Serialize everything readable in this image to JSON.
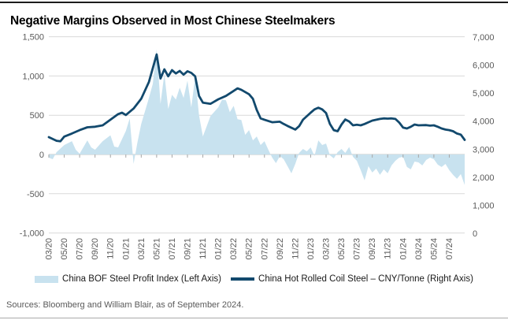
{
  "title": "Negative Margins Observed in Most Chinese Steelmakers",
  "source_note": "Sources: Bloomberg and William Blair, as of September 2024.",
  "legend": [
    {
      "label": "China BOF Steel Profit Index (Left Axis)",
      "swatch": "area",
      "color": "#c8e2ef"
    },
    {
      "label": "China Hot Rolled Coil Steel – CNY/Tonne (Right Axis)",
      "swatch": "line",
      "color": "#12496d"
    }
  ],
  "colors": {
    "area_fill": "#c8e2ef",
    "line": "#12496d",
    "grid": "#d9d9d9",
    "zero_axis": "#c4c4c4",
    "tick_mark": "#a6a6a6",
    "tick_text": "#595959"
  },
  "chart_data": {
    "type": "area",
    "subtype": "dual-axis area + line",
    "title": "Negative Margins Observed in Most Chinese Steelmakers",
    "x_tick_labels": [
      "03/20",
      "05/20",
      "07/20",
      "09/20",
      "11/20",
      "01/21",
      "03/21",
      "05/21",
      "07/21",
      "09/21",
      "11/21",
      "01/22",
      "03/22",
      "05/22",
      "07/22",
      "09/22",
      "11/22",
      "01/23",
      "03/23",
      "05/23",
      "07/23",
      "09/23",
      "11/23",
      "01/24",
      "03/24",
      "05/24",
      "07/24"
    ],
    "x_note": "x values below are month indices: 0 = 2020-03, 1 = 2020-04 ... 54 = 2024-09; fractional = mid-month",
    "left_axis": {
      "range": [
        -1000,
        1500
      ],
      "tick_values": [
        1500,
        1000,
        500,
        0,
        -500,
        -1000
      ],
      "tick_labels": [
        "1,500",
        "1,000",
        "500",
        "0",
        "-500",
        "-1,000"
      ]
    },
    "right_axis": {
      "range": [
        0,
        7000
      ],
      "tick_values": [
        7000,
        6000,
        5000,
        4000,
        3000,
        2000,
        1000,
        0
      ],
      "tick_labels": [
        "7,000",
        "6,000",
        "5,000",
        "4,000",
        "3,000",
        "2,000",
        "1,000",
        "0"
      ]
    },
    "grid": true,
    "legend_position": "bottom",
    "series": [
      {
        "name": "China BOF Steel Profit Index",
        "axis": "left",
        "type": "area",
        "color": "#c8e2ef",
        "points": [
          [
            0,
            -40
          ],
          [
            0.5,
            -60
          ],
          [
            1,
            30
          ],
          [
            2,
            120
          ],
          [
            3,
            170
          ],
          [
            3.5,
            60
          ],
          [
            4,
            10
          ],
          [
            5,
            180
          ],
          [
            5.5,
            90
          ],
          [
            6,
            60
          ],
          [
            7,
            170
          ],
          [
            8,
            245
          ],
          [
            8.5,
            100
          ],
          [
            9,
            90
          ],
          [
            10,
            300
          ],
          [
            10.5,
            460
          ],
          [
            11,
            -120
          ],
          [
            11.5,
            150
          ],
          [
            12,
            390
          ],
          [
            13,
            720
          ],
          [
            13.5,
            900
          ],
          [
            14,
            1340
          ],
          [
            14.5,
            645
          ],
          [
            15,
            1030
          ],
          [
            15.5,
            580
          ],
          [
            16,
            760
          ],
          [
            16.5,
            700
          ],
          [
            17,
            850
          ],
          [
            17.5,
            720
          ],
          [
            18,
            940
          ],
          [
            18.5,
            600
          ],
          [
            19,
            990
          ],
          [
            19.5,
            500
          ],
          [
            20,
            230
          ],
          [
            21,
            490
          ],
          [
            22,
            600
          ],
          [
            22.5,
            700
          ],
          [
            23,
            690
          ],
          [
            23.5,
            540
          ],
          [
            24,
            620
          ],
          [
            24.5,
            450
          ],
          [
            25,
            440
          ],
          [
            25.5,
            250
          ],
          [
            26,
            310
          ],
          [
            26.5,
            180
          ],
          [
            27,
            230
          ],
          [
            27.5,
            120
          ],
          [
            28,
            170
          ],
          [
            28.5,
            60
          ],
          [
            29,
            -40
          ],
          [
            29.5,
            -110
          ],
          [
            30,
            -20
          ],
          [
            30.5,
            -60
          ],
          [
            31,
            -150
          ],
          [
            31.5,
            -240
          ],
          [
            32,
            -120
          ],
          [
            32.5,
            20
          ],
          [
            33,
            70
          ],
          [
            33.5,
            40
          ],
          [
            34,
            90
          ],
          [
            34.5,
            -20
          ],
          [
            35,
            180
          ],
          [
            35.5,
            120
          ],
          [
            36,
            140
          ],
          [
            36.5,
            -10
          ],
          [
            37,
            -50
          ],
          [
            37.5,
            30
          ],
          [
            38,
            70
          ],
          [
            38.5,
            20
          ],
          [
            39,
            95
          ],
          [
            39.5,
            -30
          ],
          [
            40,
            -80
          ],
          [
            40.5,
            -200
          ],
          [
            41,
            -330
          ],
          [
            41.5,
            -150
          ],
          [
            42,
            -230
          ],
          [
            42.5,
            -180
          ],
          [
            43,
            -260
          ],
          [
            43.5,
            -190
          ],
          [
            44,
            -240
          ],
          [
            44.5,
            -140
          ],
          [
            45,
            -80
          ],
          [
            45.5,
            -40
          ],
          [
            46,
            -30
          ],
          [
            46.5,
            -160
          ],
          [
            47,
            -190
          ],
          [
            47.5,
            -90
          ],
          [
            48,
            -100
          ],
          [
            48.5,
            -140
          ],
          [
            49,
            -70
          ],
          [
            49.5,
            -40
          ],
          [
            50,
            -60
          ],
          [
            50.5,
            -130
          ],
          [
            51,
            -160
          ],
          [
            51.5,
            -120
          ],
          [
            52,
            -200
          ],
          [
            52.5,
            -260
          ],
          [
            53,
            -310
          ],
          [
            53.5,
            -250
          ],
          [
            54,
            -390
          ]
        ]
      },
      {
        "name": "China Hot Rolled Coil Steel – CNY/Tonne",
        "axis": "right",
        "type": "line",
        "color": "#12496d",
        "points": [
          [
            0,
            3430
          ],
          [
            1,
            3300
          ],
          [
            1.5,
            3280
          ],
          [
            2,
            3450
          ],
          [
            3,
            3560
          ],
          [
            4,
            3680
          ],
          [
            5,
            3780
          ],
          [
            6,
            3800
          ],
          [
            7,
            3850
          ],
          [
            8,
            4050
          ],
          [
            9,
            4250
          ],
          [
            9.5,
            4300
          ],
          [
            10,
            4220
          ],
          [
            11,
            4450
          ],
          [
            12,
            4800
          ],
          [
            13,
            5400
          ],
          [
            14,
            6380
          ],
          [
            14.5,
            5520
          ],
          [
            15,
            5850
          ],
          [
            15.5,
            5600
          ],
          [
            16,
            5820
          ],
          [
            16.5,
            5700
          ],
          [
            17,
            5790
          ],
          [
            17.5,
            5660
          ],
          [
            18,
            5780
          ],
          [
            18.5,
            5720
          ],
          [
            19,
            5600
          ],
          [
            19.5,
            4900
          ],
          [
            20,
            4660
          ],
          [
            21,
            4620
          ],
          [
            22,
            4780
          ],
          [
            23,
            4900
          ],
          [
            24,
            5080
          ],
          [
            24.5,
            5170
          ],
          [
            25,
            5120
          ],
          [
            26,
            4960
          ],
          [
            26.5,
            4800
          ],
          [
            27,
            4400
          ],
          [
            27.5,
            4100
          ],
          [
            28,
            4050
          ],
          [
            29,
            3960
          ],
          [
            30,
            3980
          ],
          [
            30.5,
            3900
          ],
          [
            31,
            3830
          ],
          [
            32,
            3700
          ],
          [
            32.5,
            3820
          ],
          [
            33,
            4050
          ],
          [
            34,
            4300
          ],
          [
            34.5,
            4420
          ],
          [
            35,
            4480
          ],
          [
            35.5,
            4420
          ],
          [
            36,
            4290
          ],
          [
            36.5,
            3900
          ],
          [
            37,
            3680
          ],
          [
            37.5,
            3640
          ],
          [
            38,
            3880
          ],
          [
            38.5,
            4060
          ],
          [
            39,
            3990
          ],
          [
            39.5,
            3850
          ],
          [
            40,
            3870
          ],
          [
            40.5,
            3850
          ],
          [
            41,
            3900
          ],
          [
            41.5,
            3960
          ],
          [
            42,
            4020
          ],
          [
            43,
            4080
          ],
          [
            43.5,
            4100
          ],
          [
            44,
            4090
          ],
          [
            44.5,
            4100
          ],
          [
            45,
            4080
          ],
          [
            45.5,
            3950
          ],
          [
            46,
            3770
          ],
          [
            46.5,
            3740
          ],
          [
            47,
            3800
          ],
          [
            47.5,
            3880
          ],
          [
            48,
            3850
          ],
          [
            49,
            3860
          ],
          [
            49.5,
            3840
          ],
          [
            50,
            3850
          ],
          [
            50.5,
            3800
          ],
          [
            51,
            3740
          ],
          [
            51.5,
            3700
          ],
          [
            52,
            3680
          ],
          [
            52.5,
            3640
          ],
          [
            53,
            3560
          ],
          [
            53.5,
            3520
          ],
          [
            54,
            3330
          ]
        ]
      }
    ]
  }
}
